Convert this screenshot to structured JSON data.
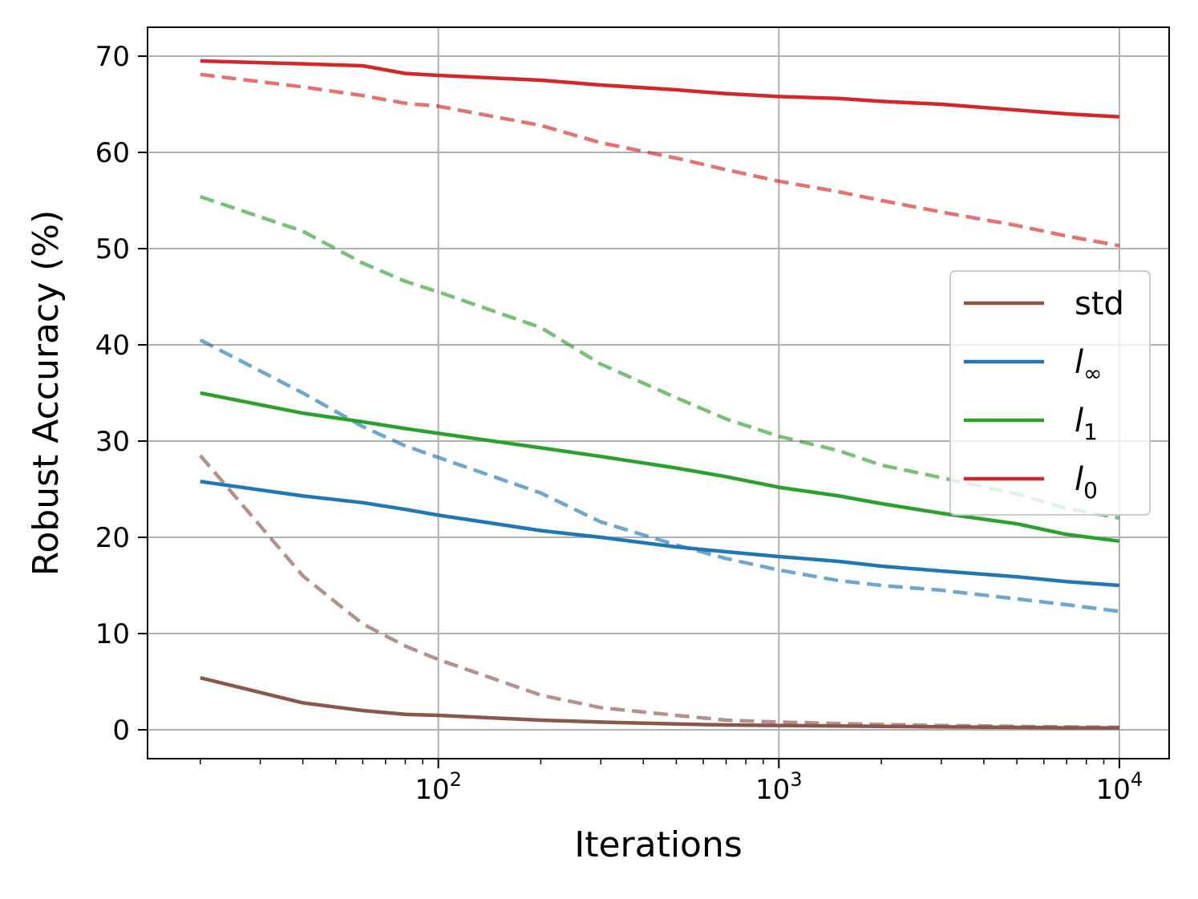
{
  "chart_data": {
    "type": "line",
    "xlabel": "Iterations",
    "ylabel": "Robust Accuracy (%)",
    "xscale": "log",
    "xlim": [
      14,
      14000
    ],
    "ylim": [
      -3,
      73
    ],
    "grid": true,
    "legend_position": "center-right",
    "x_major_ticks": [
      {
        "value": 100,
        "base": "10",
        "exp": "2"
      },
      {
        "value": 1000,
        "base": "10",
        "exp": "3"
      },
      {
        "value": 10000,
        "base": "10",
        "exp": "4"
      }
    ],
    "y_ticks": [
      0,
      10,
      20,
      30,
      40,
      50,
      60,
      70
    ],
    "x": [
      20,
      40,
      60,
      80,
      100,
      200,
      300,
      500,
      700,
      1000,
      1500,
      2000,
      3000,
      5000,
      7000,
      10000
    ],
    "legend": [
      {
        "key": "std",
        "label": "std",
        "subscript": "",
        "italic": false,
        "color": "#8c564b"
      },
      {
        "key": "linf",
        "label": "l",
        "subscript": "∞",
        "italic": true,
        "color": "#1f77b4"
      },
      {
        "key": "l1",
        "label": "l",
        "subscript": "1",
        "italic": true,
        "color": "#2ca02c"
      },
      {
        "key": "l0",
        "label": "l",
        "subscript": "0",
        "italic": true,
        "color": "#d62728"
      }
    ],
    "series": [
      {
        "key": "std",
        "style": "solid",
        "color": "#8c564b",
        "opacity": 1.0,
        "values": [
          5.4,
          2.8,
          2.0,
          1.6,
          1.5,
          1.0,
          0.8,
          0.6,
          0.5,
          0.45,
          0.4,
          0.35,
          0.3,
          0.25,
          0.2,
          0.2
        ]
      },
      {
        "key": "std",
        "style": "dashed",
        "color": "#8c564b",
        "opacity": 0.65,
        "values": [
          28.5,
          16.0,
          11.0,
          8.7,
          7.3,
          3.6,
          2.3,
          1.5,
          1.0,
          0.8,
          0.65,
          0.55,
          0.45,
          0.35,
          0.3,
          0.25
        ]
      },
      {
        "key": "linf",
        "style": "solid",
        "color": "#1f77b4",
        "opacity": 1.0,
        "values": [
          25.8,
          24.3,
          23.6,
          22.9,
          22.3,
          20.7,
          20.0,
          19.0,
          18.5,
          18.0,
          17.5,
          17.0,
          16.5,
          15.9,
          15.4,
          15.0
        ]
      },
      {
        "key": "linf",
        "style": "dashed",
        "color": "#1f77b4",
        "opacity": 0.65,
        "values": [
          40.5,
          35.0,
          31.5,
          29.5,
          28.3,
          24.6,
          21.6,
          19.2,
          17.8,
          16.6,
          15.5,
          15.0,
          14.5,
          13.6,
          13.0,
          12.3
        ]
      },
      {
        "key": "l1",
        "style": "solid",
        "color": "#2ca02c",
        "opacity": 1.0,
        "values": [
          35.0,
          32.9,
          32.0,
          31.3,
          30.8,
          29.3,
          28.4,
          27.2,
          26.3,
          25.2,
          24.3,
          23.5,
          22.5,
          21.4,
          20.3,
          19.6
        ]
      },
      {
        "key": "l1",
        "style": "dashed",
        "color": "#2ca02c",
        "opacity": 0.65,
        "values": [
          55.4,
          51.8,
          48.5,
          46.6,
          45.5,
          41.8,
          38.0,
          34.5,
          32.3,
          30.5,
          29.0,
          27.5,
          26.2,
          24.5,
          23.0,
          22.0
        ]
      },
      {
        "key": "l0",
        "style": "solid",
        "color": "#d62728",
        "opacity": 1.0,
        "values": [
          69.5,
          69.2,
          69.0,
          68.2,
          68.0,
          67.5,
          67.0,
          66.5,
          66.1,
          65.8,
          65.6,
          65.3,
          65.0,
          64.4,
          64.0,
          63.7
        ]
      },
      {
        "key": "l0",
        "style": "dashed",
        "color": "#d62728",
        "opacity": 0.65,
        "values": [
          68.1,
          66.8,
          65.9,
          65.1,
          64.8,
          62.8,
          61.0,
          59.4,
          58.2,
          57.0,
          55.9,
          55.0,
          53.8,
          52.4,
          51.3,
          50.3
        ]
      }
    ]
  }
}
